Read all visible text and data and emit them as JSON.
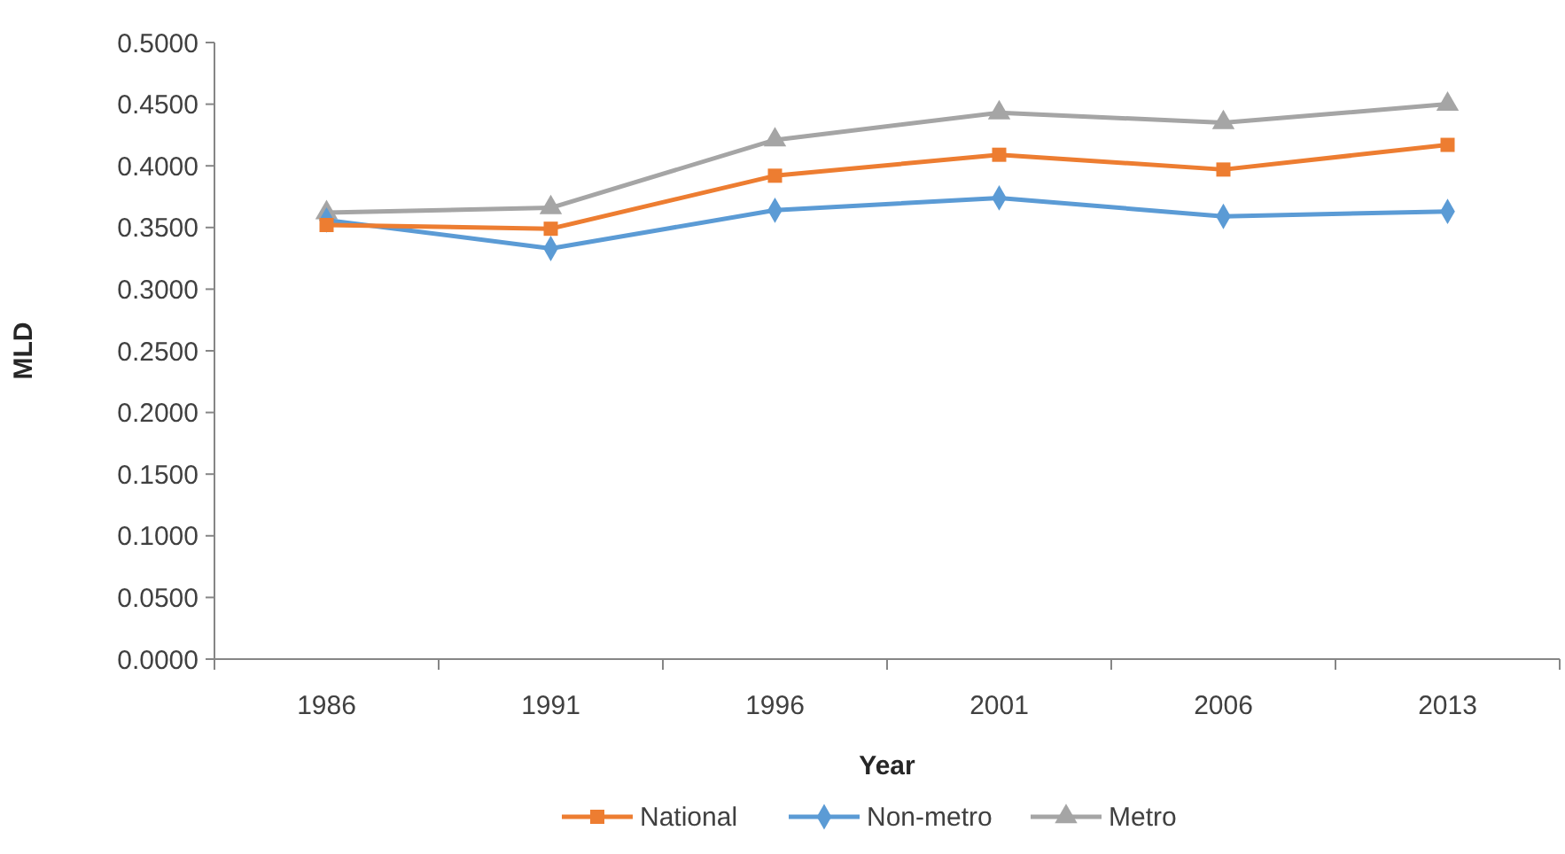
{
  "chart_data": {
    "type": "line",
    "xlabel": "Year",
    "ylabel": "MLD",
    "categories": [
      "1986",
      "1991",
      "1996",
      "2001",
      "2006",
      "2013"
    ],
    "series": [
      {
        "name": "National",
        "color": "#ed7d31",
        "marker": "square",
        "values": [
          0.352,
          0.349,
          0.392,
          0.409,
          0.397,
          0.417
        ]
      },
      {
        "name": "Non-metro",
        "color": "#5b9bd5",
        "marker": "diamond",
        "values": [
          0.356,
          0.333,
          0.364,
          0.374,
          0.359,
          0.363
        ]
      },
      {
        "name": "Metro",
        "color": "#a5a5a5",
        "marker": "triangle",
        "values": [
          0.362,
          0.366,
          0.421,
          0.443,
          0.435,
          0.45
        ]
      }
    ],
    "ylim": [
      0,
      0.5
    ],
    "yticks": [
      {
        "value": 0,
        "label": "0.0000"
      },
      {
        "value": 0.05,
        "label": "0.0500"
      },
      {
        "value": 0.1,
        "label": "0.1000"
      },
      {
        "value": 0.15,
        "label": "0.1500"
      },
      {
        "value": 0.2,
        "label": "0.2000"
      },
      {
        "value": 0.25,
        "label": "0.2500"
      },
      {
        "value": 0.3,
        "label": "0.3000"
      },
      {
        "value": 0.35,
        "label": "0.3500"
      },
      {
        "value": 0.4,
        "label": "0.4000"
      },
      {
        "value": 0.45,
        "label": "0.4500"
      },
      {
        "value": 0.5,
        "label": "0.5000"
      }
    ],
    "grid": false,
    "legend": "bottom",
    "line_style": "solid"
  }
}
